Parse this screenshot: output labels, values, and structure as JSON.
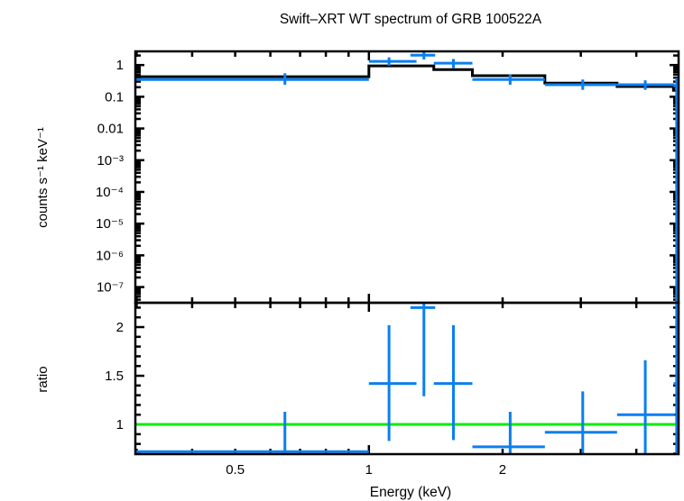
{
  "chart_data": [
    {
      "type": "scatter",
      "panel": "spectrum",
      "title": "Swift–XRT WT spectrum of GRB 100522A",
      "xlabel": "Energy (keV)",
      "ylabel": "counts s⁻¹ keV⁻¹",
      "xscale": "log",
      "yscale": "log",
      "xlim": [
        0.298,
        4.98
      ],
      "ylim": [
        3.2e-08,
        2.7
      ],
      "yticks": [
        {
          "value": 1,
          "label": "1"
        },
        {
          "value": 0.1,
          "label": "0.1"
        },
        {
          "value": 0.01,
          "label": "0.01"
        },
        {
          "value": 0.001,
          "label": "10⁻³"
        },
        {
          "value": 0.0001,
          "label": "10⁻⁴"
        },
        {
          "value": 1e-05,
          "label": "10⁻⁵"
        },
        {
          "value": 1e-06,
          "label": "10⁻⁶"
        },
        {
          "value": 1e-07,
          "label": "10⁻⁷"
        }
      ],
      "series": [
        {
          "name": "data",
          "color": "#0a7ff0",
          "points": [
            {
              "x": 0.647,
              "xlo": 0.298,
              "xhi": 1.0,
              "y": 0.35,
              "ylo": 0.24,
              "yhi": 0.55
            },
            {
              "x": 1.11,
              "xlo": 1.0,
              "xhi": 1.28,
              "y": 1.3,
              "ylo": 0.95,
              "yhi": 1.75
            },
            {
              "x": 1.33,
              "xlo": 1.24,
              "xhi": 1.41,
              "y": 2.05,
              "ylo": 1.5,
              "yhi": 2.7
            },
            {
              "x": 1.55,
              "xlo": 1.4,
              "xhi": 1.71,
              "y": 1.14,
              "ylo": 0.8,
              "yhi": 1.55
            },
            {
              "x": 2.08,
              "xlo": 1.71,
              "xhi": 2.49,
              "y": 0.35,
              "ylo": 0.24,
              "yhi": 0.5
            },
            {
              "x": 3.03,
              "xlo": 2.49,
              "xhi": 3.62,
              "y": 0.24,
              "ylo": 0.165,
              "yhi": 0.35
            },
            {
              "x": 4.19,
              "xlo": 3.62,
              "xhi": 4.88,
              "y": 0.24,
              "ylo": 0.165,
              "yhi": 0.33
            },
            {
              "x": 4.93,
              "xlo": 4.85,
              "xhi": 4.98,
              "y": 0.22,
              "ylo": 3.2e-08,
              "yhi": 0.4
            }
          ]
        },
        {
          "name": "model",
          "color": "#000000",
          "steps": [
            {
              "xlo": 0.298,
              "xhi": 1.0,
              "y": 0.43
            },
            {
              "xlo": 1.0,
              "xhi": 1.4,
              "y": 0.94
            },
            {
              "xlo": 1.4,
              "xhi": 1.71,
              "y": 0.72
            },
            {
              "xlo": 1.71,
              "xhi": 2.49,
              "y": 0.46
            },
            {
              "xlo": 2.49,
              "xhi": 3.62,
              "y": 0.27
            },
            {
              "xlo": 3.62,
              "xhi": 4.85,
              "y": 0.21
            },
            {
              "xlo": 4.85,
              "xhi": 4.98,
              "y": 0.16
            }
          ]
        }
      ]
    },
    {
      "type": "scatter",
      "panel": "ratio",
      "xlabel": "Energy (keV)",
      "ylabel": "ratio",
      "xscale": "log",
      "yscale": "linear",
      "xlim": [
        0.298,
        4.98
      ],
      "ylim": [
        0.695,
        2.25
      ],
      "xticks": [
        {
          "value": 0.5,
          "label": "0.5"
        },
        {
          "value": 1,
          "label": "1"
        },
        {
          "value": 2,
          "label": "2"
        }
      ],
      "yticks": [
        {
          "value": 2,
          "label": "2"
        },
        {
          "value": 1.5,
          "label": "1.5"
        },
        {
          "value": 1,
          "label": "1"
        }
      ],
      "reference_line": {
        "y": 1,
        "color": "#00ee00"
      },
      "series": [
        {
          "name": "ratio",
          "color": "#0a7ff0",
          "points": [
            {
              "x": 0.647,
              "xlo": 0.298,
              "xhi": 1.0,
              "y": 0.72,
              "ylo": 0.5,
              "yhi": 1.13
            },
            {
              "x": 1.11,
              "xlo": 1.0,
              "xhi": 1.28,
              "y": 1.42,
              "ylo": 0.83,
              "yhi": 2.02
            },
            {
              "x": 1.33,
              "xlo": 1.24,
              "xhi": 1.41,
              "y": 2.2,
              "ylo": 1.29,
              "yhi": 3.1
            },
            {
              "x": 1.55,
              "xlo": 1.4,
              "xhi": 1.71,
              "y": 1.42,
              "ylo": 0.84,
              "yhi": 2.02
            },
            {
              "x": 2.08,
              "xlo": 1.71,
              "xhi": 2.49,
              "y": 0.77,
              "ylo": 0.4,
              "yhi": 1.13
            },
            {
              "x": 3.03,
              "xlo": 2.49,
              "xhi": 3.62,
              "y": 0.92,
              "ylo": 0.5,
              "yhi": 1.34
            },
            {
              "x": 4.19,
              "xlo": 3.62,
              "xhi": 4.88,
              "y": 1.1,
              "ylo": 0.55,
              "yhi": 1.66
            },
            {
              "x": 4.93,
              "xlo": 4.85,
              "xhi": 4.98,
              "y": 1.42,
              "ylo": 0.0,
              "yhi": 5.0
            }
          ]
        }
      ]
    }
  ]
}
